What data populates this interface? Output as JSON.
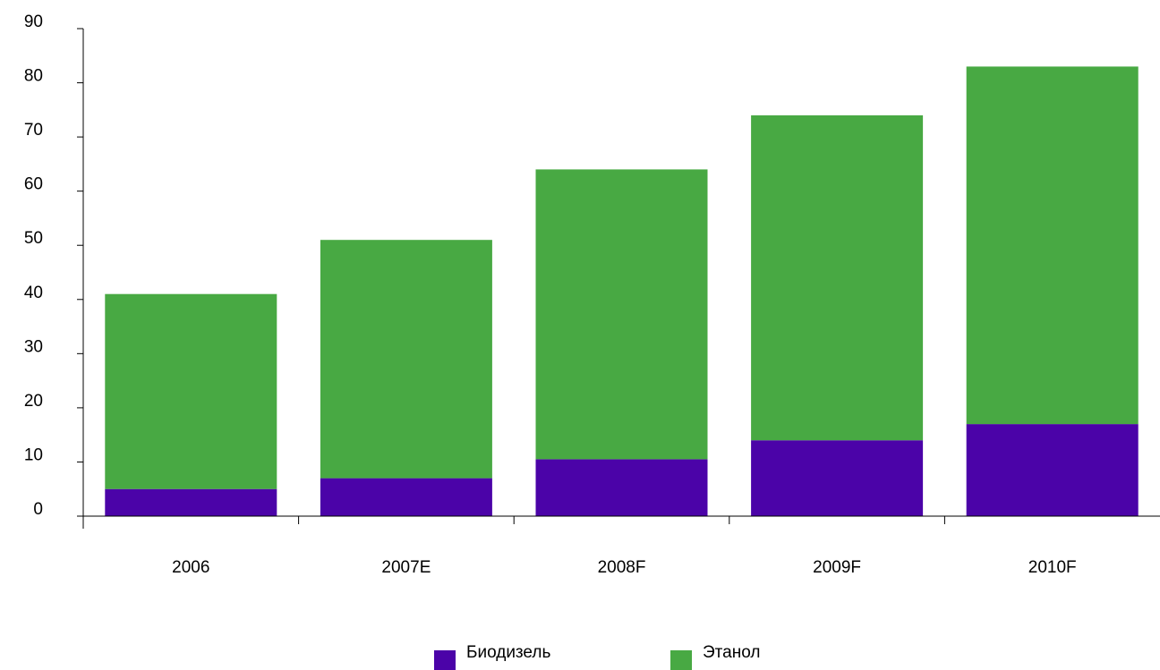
{
  "chart_data": {
    "type": "bar",
    "stacked": true,
    "categories": [
      "2006",
      "2007E",
      "2008F",
      "2009F",
      "2010F"
    ],
    "series": [
      {
        "name": "Биодизель",
        "color": "#4b03a8",
        "values": [
          5,
          7,
          10.5,
          14,
          17
        ]
      },
      {
        "name": "Этанол",
        "color": "#48a943",
        "values": [
          36,
          44,
          53.5,
          60,
          66
        ]
      }
    ],
    "ylim": [
      0,
      90
    ],
    "yticks": [
      "0",
      "10",
      "20",
      "30",
      "40",
      "50",
      "60",
      "70",
      "80",
      "90"
    ],
    "title": "",
    "xlabel": "",
    "ylabel": "",
    "grid": false,
    "legend_position": "bottom"
  }
}
